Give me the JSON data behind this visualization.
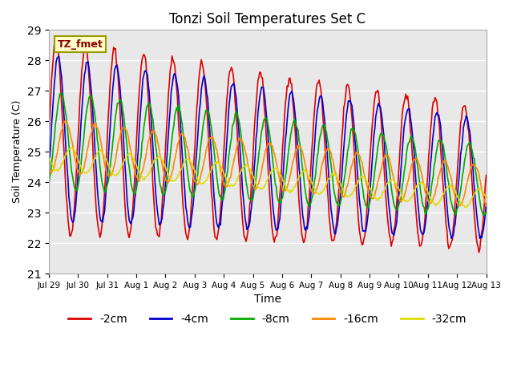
{
  "title": "Tonzi Soil Temperatures Set C",
  "xlabel": "Time",
  "ylabel": "Soil Temperature (C)",
  "ylim": [
    21.0,
    29.0
  ],
  "yticks": [
    21.0,
    22.0,
    23.0,
    24.0,
    25.0,
    26.0,
    27.0,
    28.0,
    29.0
  ],
  "xtick_labels": [
    "Jul 29",
    "Jul 30",
    "Jul 31",
    "Aug 1",
    "Aug 2",
    "Aug 3",
    "Aug 4",
    "Aug 5",
    "Aug 6",
    "Aug 7",
    "Aug 8",
    "Aug 9",
    "Aug 10",
    "Aug 11",
    "Aug 12",
    "Aug 13"
  ],
  "series_labels": [
    "-2cm",
    "-4cm",
    "-8cm",
    "-16cm",
    "-32cm"
  ],
  "series_colors": [
    "#dd0000",
    "#0000cc",
    "#00aa00",
    "#ff8800",
    "#dddd00"
  ],
  "legend_label": "TZ_fmet",
  "background_color": "#e8e8e8",
  "n_points": 480
}
